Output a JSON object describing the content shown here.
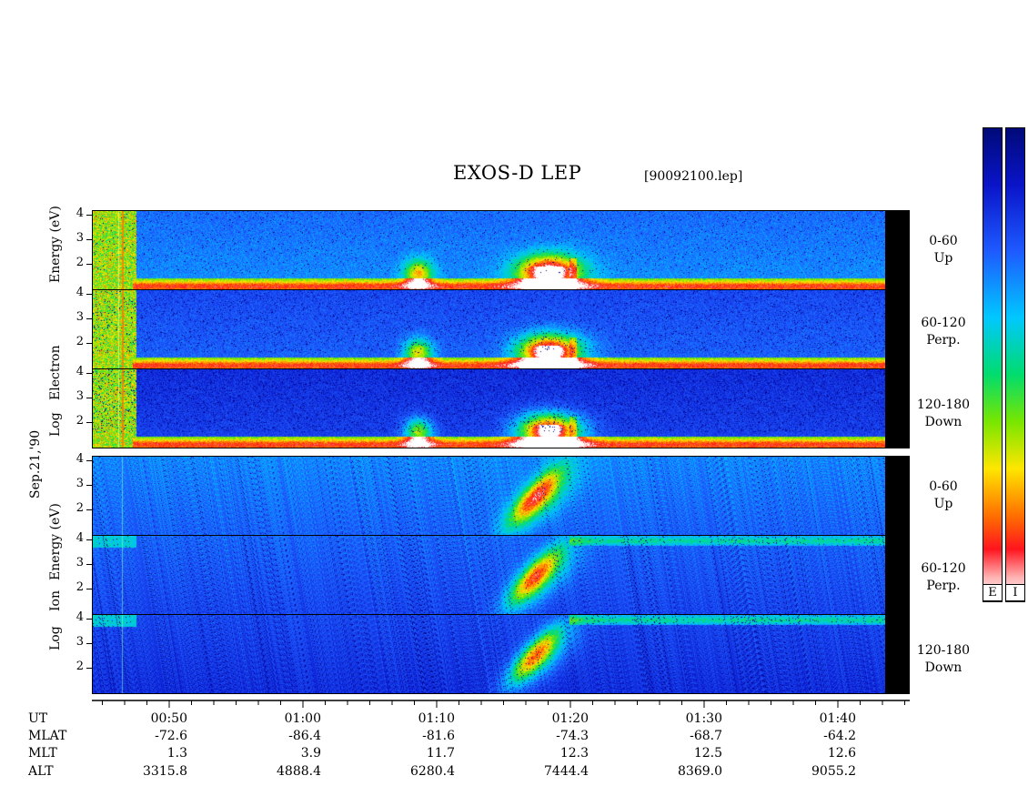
{
  "chart_data": {
    "type": "heatmap",
    "title": "EXOS-D LEP",
    "file_label": "[90092100.lep]",
    "date_label": "Sep.21,'90",
    "electron": {
      "ylabel": "Log Electron Energy (eV)",
      "label_words": [
        "Log",
        "Electron",
        "Energy",
        "(eV)"
      ],
      "panels": [
        {
          "label_range": "0-60",
          "label_dir": "Up"
        },
        {
          "label_range": "60-120",
          "label_dir": "Perp."
        },
        {
          "label_range": "120-180",
          "label_dir": "Down"
        }
      ]
    },
    "ion": {
      "ylabel": "Log Ion Energy (eV)",
      "label_words": [
        "Log",
        "Ion",
        "Energy",
        "(eV)"
      ],
      "panels": [
        {
          "label_range": "0-60",
          "label_dir": "Up"
        },
        {
          "label_range": "60-120",
          "label_dir": "Perp."
        },
        {
          "label_range": "120-180",
          "label_dir": "Down"
        }
      ]
    },
    "y_ticks": [
      "4",
      "3",
      "2"
    ],
    "ylim": [
      1,
      4.2
    ],
    "x_axis": {
      "row_labels": [
        "UT",
        "MLAT",
        "MLT",
        "ALT"
      ],
      "ticks": [
        {
          "ut": "00:50",
          "mlat": "-72.6",
          "mlt": "1.3",
          "alt": "3315.8"
        },
        {
          "ut": "01:00",
          "mlat": "-86.4",
          "mlt": "3.9",
          "alt": "4888.4"
        },
        {
          "ut": "01:10",
          "mlat": "-81.6",
          "mlt": "11.7",
          "alt": "6280.4"
        },
        {
          "ut": "01:20",
          "mlat": "-74.3",
          "mlt": "12.3",
          "alt": "7444.4"
        },
        {
          "ut": "01:30",
          "mlat": "-68.7",
          "mlt": "12.5",
          "alt": "8369.0"
        },
        {
          "ut": "01:40",
          "mlat": "-64.2",
          "mlt": "12.6",
          "alt": "9055.2"
        }
      ]
    },
    "colorbars": [
      {
        "label": "E"
      },
      {
        "label": "I"
      }
    ]
  }
}
